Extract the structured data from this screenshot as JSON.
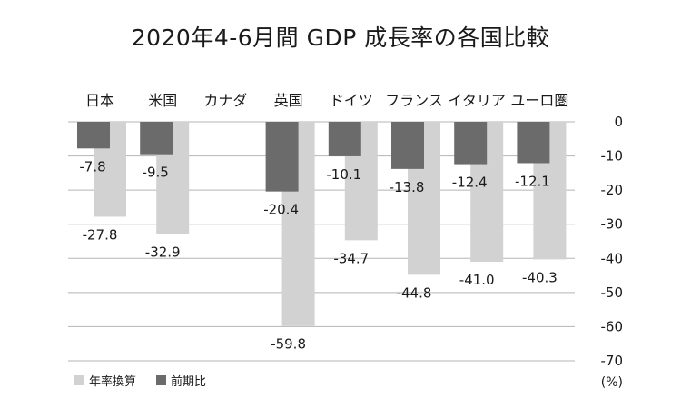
{
  "chart_data": {
    "type": "bar",
    "title": "2020年4-6月間 GDP 成長率の各国比較",
    "categories": [
      "日本",
      "米国",
      "カナダ",
      "英国",
      "ドイツ",
      "フランス",
      "イタリア",
      "ユーロ圏"
    ],
    "series": [
      {
        "name": "年率換算",
        "color": "#d2d2d2",
        "values": [
          -27.8,
          -32.9,
          null,
          -59.8,
          -34.7,
          -44.8,
          -41.0,
          -40.3
        ]
      },
      {
        "name": "前期比",
        "color": "#6b6b6b",
        "values": [
          -7.8,
          -9.5,
          null,
          -20.4,
          -10.1,
          -13.8,
          -12.4,
          -12.1
        ]
      }
    ],
    "value_labels": {
      "年率換算": [
        "-27.8",
        "-32.9",
        "",
        "-59.8",
        "-34.7",
        "-44.8",
        "-41.0",
        "-40.3"
      ],
      "前期比": [
        "-7.8",
        "-9.5",
        "",
        "-20.4",
        "-10.1",
        "-13.8",
        "-12.4",
        "-12.1"
      ]
    },
    "ylim": [
      -70,
      0
    ],
    "yticks": [
      0,
      -10,
      -20,
      -30,
      -40,
      -50,
      -60,
      -70
    ],
    "ytick_labels": [
      "0",
      "-10",
      "-20",
      "-30",
      "-40",
      "-50",
      "-60",
      "-70"
    ],
    "y_unit": "(%)",
    "y_axis_side": "right",
    "grid": true,
    "legend_position": "bottom-left",
    "gridline_color": "#b5b5b5",
    "text_color": "#1a1a1a"
  }
}
